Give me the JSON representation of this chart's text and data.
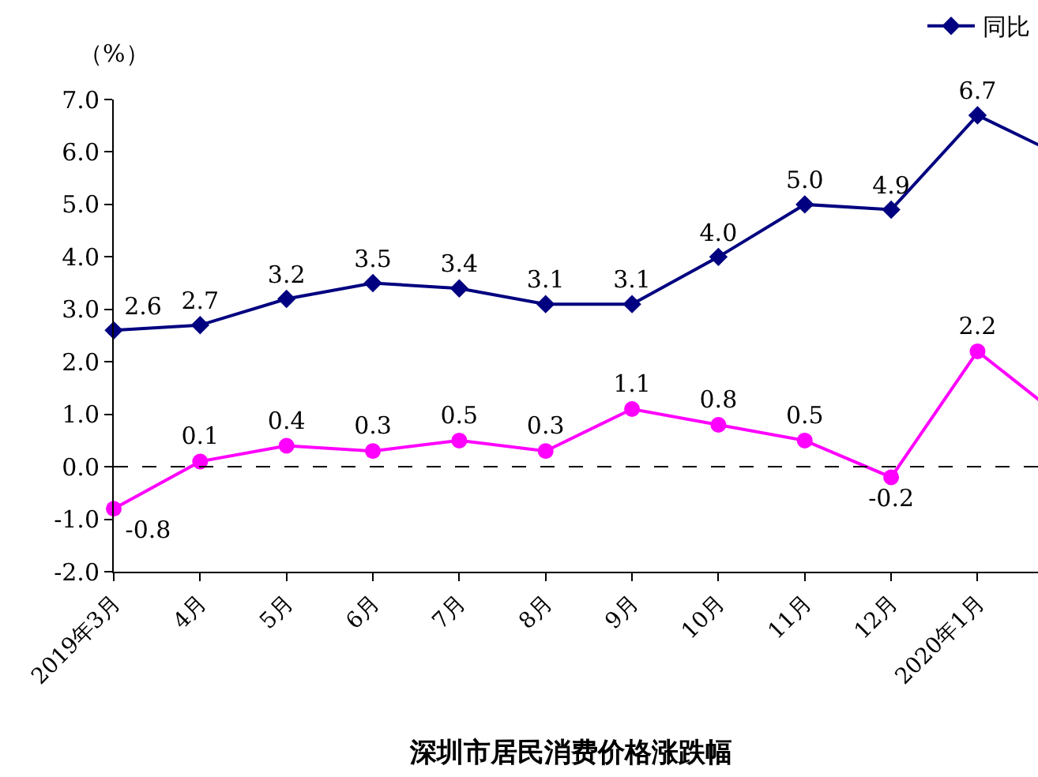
{
  "chart_data": {
    "type": "line",
    "title": "深圳市居民消费价格涨跌幅",
    "ylabel": "（%）",
    "categories": [
      "2019年3月",
      "4月",
      "5月",
      "6月",
      "7月",
      "8月",
      "9月",
      "10月",
      "11月",
      "12月",
      "2020年1月",
      null
    ],
    "series": [
      {
        "name": "同比",
        "color": "#000080",
        "marker": "diamond",
        "values": [
          2.6,
          2.7,
          3.2,
          3.5,
          3.4,
          3.1,
          3.1,
          4.0,
          5.0,
          4.9,
          6.7,
          5.9
        ],
        "value_labels": [
          "2.6",
          "2.7",
          "3.2",
          "3.5",
          "3.4",
          "3.1",
          "3.1",
          "4.0",
          "5.0",
          "4.9",
          "6.7",
          null
        ]
      },
      {
        "color": "#ff00ff",
        "marker": "circle",
        "values": [
          -0.8,
          0.1,
          0.4,
          0.3,
          0.5,
          0.3,
          1.1,
          0.8,
          0.5,
          -0.2,
          2.2,
          0.9
        ],
        "value_labels": [
          "-0.8",
          "0.1",
          "0.4",
          "0.3",
          "0.5",
          "0.3",
          "1.1",
          "0.8",
          "0.5",
          "-0.2",
          "2.2",
          null
        ]
      }
    ],
    "ylim": [
      -2,
      7
    ],
    "yticks": [
      {
        "value": -2,
        "label": "-2.0"
      },
      {
        "value": -1,
        "label": "-1.0"
      },
      {
        "value": 0,
        "label": "0.0"
      },
      {
        "value": 1,
        "label": "1.0"
      },
      {
        "value": 2,
        "label": "2.0"
      },
      {
        "value": 3,
        "label": "3.0"
      },
      {
        "value": 4,
        "label": "4.0"
      },
      {
        "value": 5,
        "label": "5.0"
      },
      {
        "value": 6,
        "label": "6.0"
      },
      {
        "value": 7,
        "label": "7.0"
      }
    ],
    "ref_lines": [
      {
        "axis": "y",
        "value": 0,
        "color": "#000000",
        "line_style": "dashed"
      }
    ],
    "legend": "top right",
    "line_style": "solid"
  }
}
